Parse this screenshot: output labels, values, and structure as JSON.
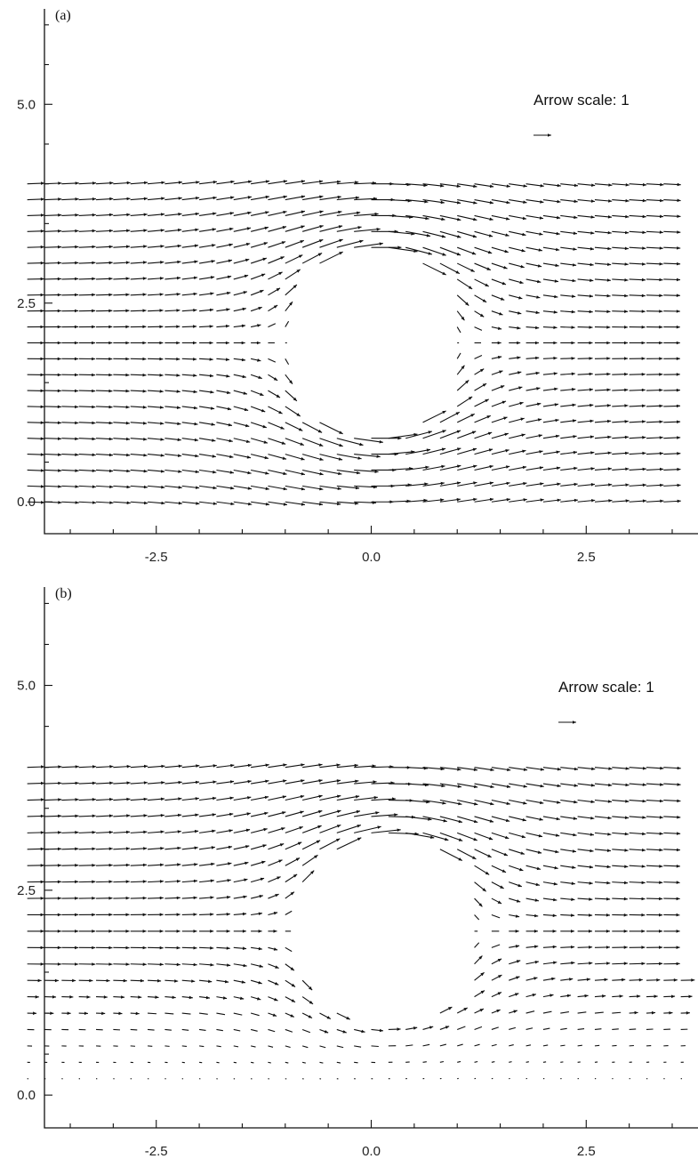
{
  "chart_data": [
    {
      "type": "quiver",
      "panel_label": "(a)",
      "arrow_scale_text": "Arrow scale: 1",
      "arrow_scale": 1,
      "xlim": [
        -3.8,
        3.8
      ],
      "ylim": [
        -0.4,
        6.2
      ],
      "xticks": [
        -2.5,
        0.0,
        2.5
      ],
      "xtick_labels": [
        "-2.5",
        "0.0",
        "2.5"
      ],
      "yticks": [
        0.0,
        2.5,
        5.0
      ],
      "ytick_labels": [
        "0.0",
        "2.5",
        "5.0"
      ],
      "grid": {
        "x_start": -4.0,
        "x_step": 0.2,
        "nx": 41,
        "y_start": 0.0,
        "y_step": 0.2,
        "ny": 21
      },
      "obstacle": {
        "center": [
          0.0,
          2.0
        ],
        "half_width": 0.95,
        "half_height": 1.0
      },
      "inflow_speed": 1.0,
      "wall_damping": false
    },
    {
      "type": "quiver",
      "panel_label": "(b)",
      "arrow_scale_text": "Arrow scale: 1",
      "arrow_scale": 1,
      "xlim": [
        -3.8,
        3.8
      ],
      "ylim": [
        -0.4,
        6.2
      ],
      "xticks": [
        -2.5,
        0.0,
        2.5
      ],
      "xtick_labels": [
        "-2.5",
        "0.0",
        "2.5"
      ],
      "yticks": [
        0.0,
        2.5,
        5.0
      ],
      "ytick_labels": [
        "0.0",
        "2.5",
        "5.0"
      ],
      "grid": {
        "x_start": -4.0,
        "x_step": 0.2,
        "nx": 41,
        "y_start": 0.0,
        "y_step": 0.2,
        "ny": 21
      },
      "obstacle": {
        "center": [
          0.15,
          2.0
        ],
        "half_width": 0.95,
        "half_height": 1.0
      },
      "inflow_speed": 1.0,
      "wall_damping": true
    }
  ]
}
